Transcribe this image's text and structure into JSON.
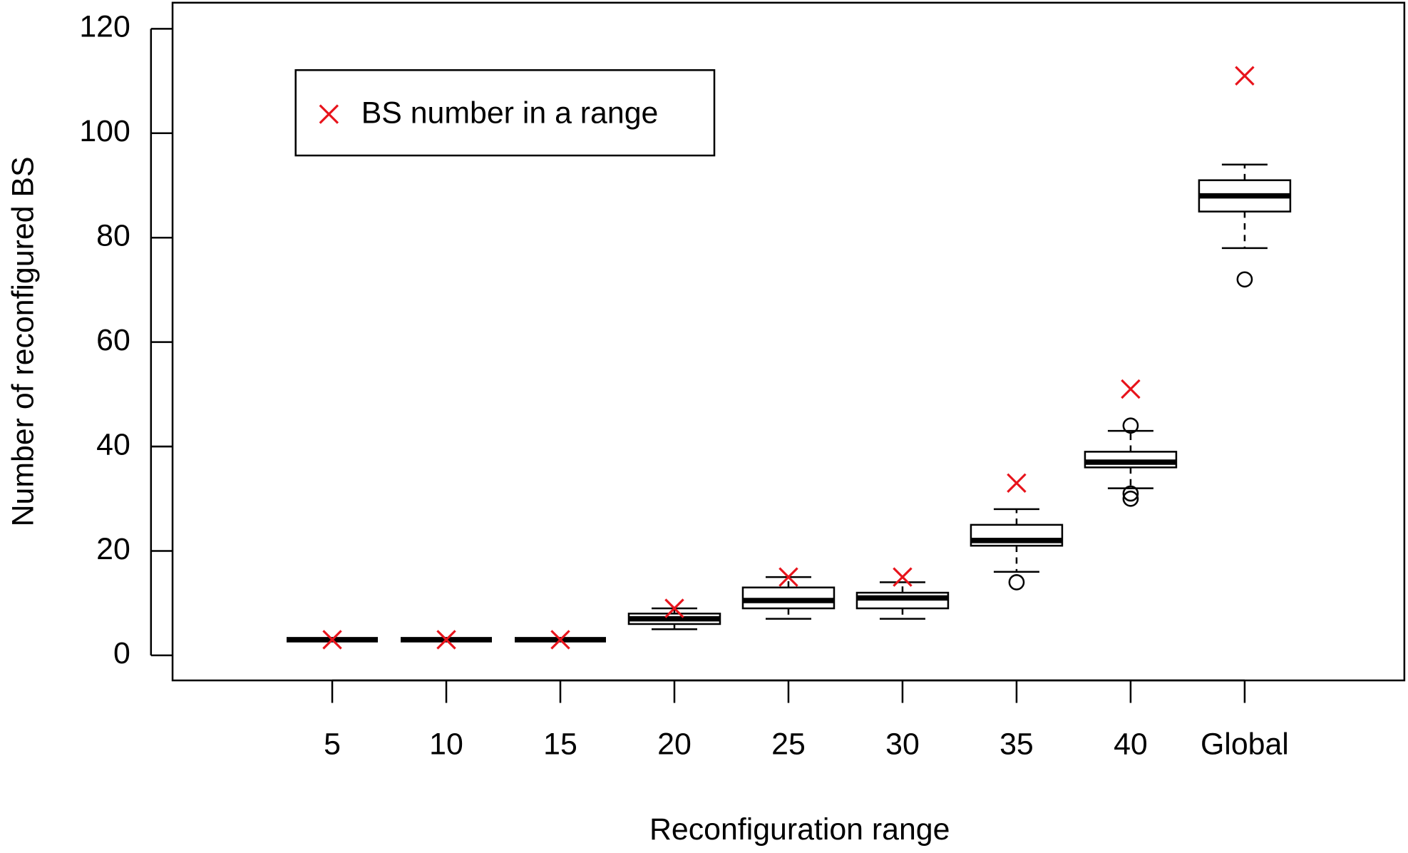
{
  "chart_data": {
    "type": "box",
    "x_label": "Reconfiguration range",
    "y_label": "Number of reconfigured BS",
    "categories": [
      "5",
      "10",
      "15",
      "20",
      "25",
      "30",
      "35",
      "40",
      "Global"
    ],
    "boxes": [
      {
        "low": 3,
        "q1": 3,
        "median": 3,
        "q3": 3,
        "high": 3,
        "outliers": []
      },
      {
        "low": 3,
        "q1": 3,
        "median": 3,
        "q3": 3,
        "high": 3,
        "outliers": []
      },
      {
        "low": 3,
        "q1": 3,
        "median": 3,
        "q3": 3,
        "high": 3,
        "outliers": []
      },
      {
        "low": 5,
        "q1": 6,
        "median": 7,
        "q3": 8,
        "high": 9,
        "outliers": []
      },
      {
        "low": 7,
        "q1": 9,
        "median": 10.5,
        "q3": 13,
        "high": 15,
        "outliers": []
      },
      {
        "low": 7,
        "q1": 9,
        "median": 11,
        "q3": 12,
        "high": 14,
        "outliers": []
      },
      {
        "low": 16,
        "q1": 21,
        "median": 22,
        "q3": 25,
        "high": 28,
        "outliers": [
          14
        ]
      },
      {
        "low": 32,
        "q1": 36,
        "median": 37,
        "q3": 39,
        "high": 43,
        "outliers": [
          44,
          31,
          30
        ]
      },
      {
        "low": 78,
        "q1": 85,
        "median": 88,
        "q3": 91,
        "high": 94,
        "outliers": [
          72
        ]
      }
    ],
    "markers": {
      "name": "BS number in a range",
      "color": "#e8141c",
      "values": [
        3,
        3,
        3,
        9,
        15,
        15,
        33,
        51,
        111
      ]
    },
    "ylim": [
      -4.8,
      125
    ],
    "yticks": [
      0,
      20,
      40,
      60,
      80,
      100,
      120
    ],
    "legend": "top-left"
  }
}
